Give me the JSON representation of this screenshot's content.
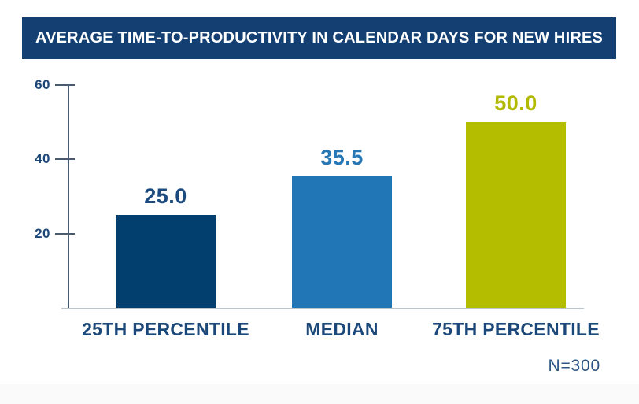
{
  "header": {
    "title": "AVERAGE TIME-TO-PRODUCTIVITY IN CALENDAR DAYS FOR NEW HIRES",
    "background": "#133f72",
    "text_color": "#ffffff"
  },
  "note": {
    "label": "N=300"
  },
  "chart_data": {
    "type": "bar",
    "title": "AVERAGE TIME-TO-PRODUCTIVITY IN CALENDAR DAYS FOR NEW HIRES",
    "categories": [
      "25TH PERCENTILE",
      "MEDIAN",
      "75TH PERCENTILE"
    ],
    "values": [
      25.0,
      35.5,
      50.0
    ],
    "value_labels": [
      "25.0",
      "35.5",
      "50.0"
    ],
    "bar_colors": [
      "#033f6e",
      "#2176b5",
      "#b5bd00"
    ],
    "value_label_colors": [
      "#1b4a7e",
      "#2677b5",
      "#b2ba00"
    ],
    "xlabel": "",
    "ylabel": "",
    "yticks": [
      20,
      40,
      60
    ],
    "ylim": [
      0,
      60
    ],
    "grid": false,
    "legend": null,
    "annotation": "N=300",
    "axis_color": "#4a5b6e",
    "baseline_color": "#bdc4ca",
    "tick_label_color": "#1c4879",
    "category_label_color": "#1c4879"
  }
}
